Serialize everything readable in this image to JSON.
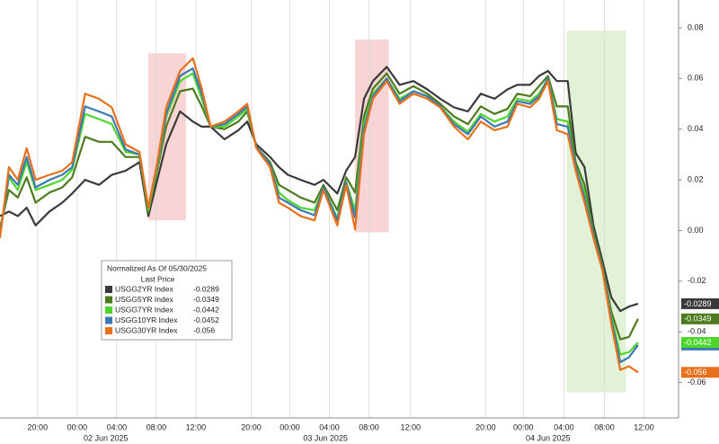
{
  "chart_data": {
    "type": "line",
    "legend_title": "Normalized As Of 05/30/2025",
    "legend_subtitle": "Last Price",
    "x": [
      -3.8,
      -2.9,
      -2,
      -1.1,
      -0.2,
      1.2,
      2.5,
      3.5,
      4.8,
      6.2,
      7.5,
      8.9,
      10.3,
      11.2,
      12.1,
      13,
      14.4,
      15.7,
      16.6,
      17.5,
      18.9,
      20.3,
      21.2,
      22.1,
      23.5,
      24.4,
      25.3,
      26.6,
      28,
      28.9,
      30.3,
      31.2,
      32.1,
      33,
      33.9,
      35.3,
      36.6,
      38,
      39.4,
      40.7,
      42.1,
      43.5,
      44.8,
      46.2,
      47.5,
      48.5,
      49.8,
      50.7,
      51.6,
      52.5,
      53.6,
      54.4,
      55.3,
      56.2,
      57.1,
      58,
      58.9,
      59.8,
      60.7
    ],
    "series": [
      {
        "name": "USGG2YR Index",
        "color": "#3a3a3a",
        "last": -0.0289,
        "values": [
          0.0057,
          0.0075,
          0.0057,
          0.009,
          0.002,
          0.0075,
          0.011,
          0.0146,
          0.02,
          0.018,
          0.022,
          0.0236,
          0.027,
          0.0057,
          0.02,
          0.034,
          0.047,
          0.043,
          0.041,
          0.041,
          0.036,
          0.0396,
          0.043,
          0.034,
          0.029,
          0.025,
          0.022,
          0.02,
          0.018,
          0.02,
          0.0146,
          0.0236,
          0.029,
          0.052,
          0.059,
          0.0646,
          0.0575,
          0.059,
          0.0557,
          0.052,
          0.0486,
          0.047,
          0.054,
          0.052,
          0.0557,
          0.0575,
          0.0575,
          0.061,
          0.063,
          0.059,
          0.059,
          0.0307,
          0.025,
          0.002,
          -0.012,
          -0.0264,
          -0.0318,
          -0.03,
          -0.0289
        ]
      },
      {
        "name": "USGG5YR Index",
        "color": "#4e7a1e",
        "last": -0.0349,
        "values": [
          0.001,
          0.016,
          0.013,
          0.021,
          0.011,
          0.015,
          0.017,
          0.021,
          0.037,
          0.035,
          0.035,
          0.029,
          0.029,
          0.007,
          0.024,
          0.041,
          0.055,
          0.056,
          0.049,
          0.041,
          0.04,
          0.043,
          0.047,
          0.033,
          0.027,
          0.018,
          0.016,
          0.013,
          0.011,
          0.018,
          0.008,
          0.021,
          0.015,
          0.045,
          0.056,
          0.062,
          0.054,
          0.057,
          0.054,
          0.05,
          0.045,
          0.042,
          0.049,
          0.046,
          0.048,
          0.054,
          0.053,
          0.057,
          0.061,
          0.049,
          0.049,
          0.027,
          0.018,
          0,
          -0.014,
          -0.032,
          -0.043,
          -0.042,
          -0.0349
        ]
      },
      {
        "name": "USGG7YR Index",
        "color": "#4cd62c",
        "last": -0.0442,
        "values": [
          -0.001,
          0.021,
          0.016,
          0.027,
          0.016,
          0.018,
          0.02,
          0.024,
          0.046,
          0.044,
          0.042,
          0.031,
          0.03,
          0.008,
          0.025,
          0.045,
          0.059,
          0.062,
          0.052,
          0.041,
          0.041,
          0.045,
          0.048,
          0.033,
          0.026,
          0.015,
          0.012,
          0.009,
          0.008,
          0.017,
          0.005,
          0.019,
          0.008,
          0.042,
          0.054,
          0.06,
          0.052,
          0.055,
          0.053,
          0.049,
          0.043,
          0.039,
          0.046,
          0.043,
          0.045,
          0.052,
          0.051,
          0.054,
          0.06,
          0.044,
          0.043,
          0.025,
          0.015,
          -0.002,
          -0.015,
          -0.034,
          -0.049,
          -0.048,
          -0.0442
        ]
      },
      {
        "name": "USGG10YR Index",
        "color": "#3b78b5",
        "last": -0.0452,
        "values": [
          -0.002,
          0.022,
          0.018,
          0.029,
          0.017,
          0.02,
          0.022,
          0.025,
          0.049,
          0.047,
          0.045,
          0.032,
          0.03,
          0.009,
          0.026,
          0.046,
          0.061,
          0.064,
          0.054,
          0.041,
          0.042,
          0.046,
          0.049,
          0.033,
          0.026,
          0.013,
          0.011,
          0.008,
          0.006,
          0.017,
          0.004,
          0.019,
          0.005,
          0.04,
          0.053,
          0.06,
          0.051,
          0.055,
          0.053,
          0.049,
          0.042,
          0.038,
          0.045,
          0.041,
          0.043,
          0.051,
          0.05,
          0.053,
          0.06,
          0.042,
          0.041,
          0.025,
          0.013,
          -0.002,
          -0.015,
          -0.035,
          -0.052,
          -0.05,
          -0.0452
        ]
      },
      {
        "name": "USGG30YR Index",
        "color": "#e8701a",
        "last": -0.056,
        "values": [
          -0.003,
          0.025,
          0.02,
          0.0325,
          0.02,
          0.022,
          0.0236,
          0.027,
          0.054,
          0.052,
          0.0486,
          0.034,
          0.031,
          0.009,
          0.027,
          0.0486,
          0.063,
          0.068,
          0.056,
          0.041,
          0.043,
          0.047,
          0.05,
          0.0325,
          0.025,
          0.011,
          0.009,
          0.0057,
          0.004,
          0.016,
          0.002,
          0.018,
          0.0004,
          0.038,
          0.052,
          0.059,
          0.05,
          0.054,
          0.052,
          0.0486,
          0.041,
          0.036,
          0.043,
          0.0396,
          0.041,
          0.05,
          0.0486,
          0.052,
          0.059,
          0.0396,
          0.038,
          0.0236,
          0.011,
          -0.003,
          -0.0157,
          -0.037,
          -0.055,
          -0.0536,
          -0.056
        ]
      }
    ],
    "xlim": [
      -3.8,
      64.8
    ],
    "ylim": [
      -0.074,
      0.091
    ],
    "yticks": [
      0.08,
      0.06,
      0.04,
      0.02,
      {
        "value": 0,
        "label": "0.00"
      },
      -0.02,
      -0.04,
      -0.06
    ],
    "xticks": [
      {
        "value": 0,
        "label": "20:00"
      },
      {
        "value": 4,
        "label": "00:00"
      },
      {
        "value": 8,
        "label": "04:00"
      },
      {
        "value": 12,
        "label": "08:00"
      },
      {
        "value": 16,
        "label": "12:00"
      },
      {
        "value": 21.6,
        "label": "20:00"
      },
      {
        "value": 25.5,
        "label": "00:00"
      },
      {
        "value": 29.5,
        "label": "04:00"
      },
      {
        "value": 33.5,
        "label": "08:00"
      },
      {
        "value": 37.7,
        "label": "12:00"
      },
      {
        "value": 45.3,
        "label": "20:00"
      },
      {
        "value": 49.1,
        "label": "00:00"
      },
      {
        "value": 53.2,
        "label": "04:00"
      },
      {
        "value": 57.3,
        "label": "08:00"
      },
      {
        "value": 61.3,
        "label": "12:00"
      }
    ],
    "date_labels": [
      {
        "value": 6.9,
        "label": "02 Jun 2025"
      },
      {
        "value": 29.1,
        "label": "03 Jun 2025"
      },
      {
        "value": 51.6,
        "label": "04 Jun 2025"
      }
    ],
    "highlights": [
      {
        "x": [
          11.2,
          15
        ],
        "y": [
          0.004,
          0.07
        ],
        "color": "#f6c9c9"
      },
      {
        "x": [
          32.1,
          35.5
        ],
        "y": [
          -0.0007,
          0.0754
        ],
        "color": "#f6c9c9"
      },
      {
        "x": [
          53.5,
          59.5
        ],
        "y": [
          -0.0639,
          0.0789
        ],
        "color": "#d9efcc"
      }
    ],
    "grid": true
  }
}
